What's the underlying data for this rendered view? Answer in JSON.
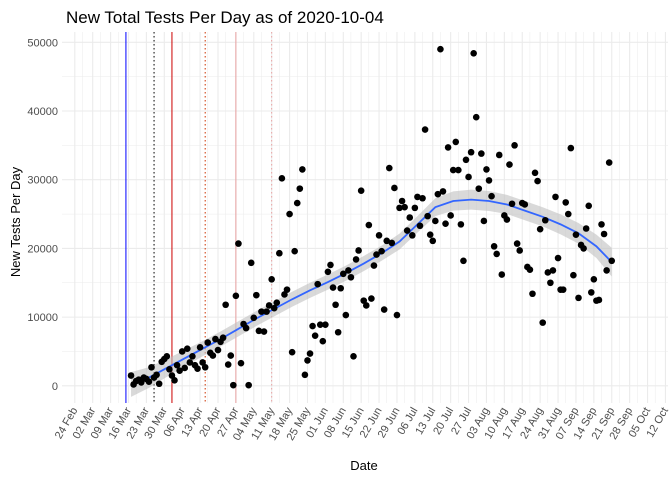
{
  "chart_data": {
    "type": "scatter",
    "title": "New Total Tests Per Day as of 2020-10-04",
    "xlabel": "Date",
    "ylabel": "New Tests Per Day",
    "x_range": [
      "2020-02-19",
      "2020-10-13"
    ],
    "ylim": [
      -2500,
      51500
    ],
    "y_ticks": [
      0,
      10000,
      20000,
      30000,
      40000,
      50000
    ],
    "x_ticks": [
      {
        "date": "2020-02-24",
        "label": "24 Feb"
      },
      {
        "date": "2020-03-02",
        "label": "02 Mar"
      },
      {
        "date": "2020-03-09",
        "label": "09 Mar"
      },
      {
        "date": "2020-03-16",
        "label": "16 Mar"
      },
      {
        "date": "2020-03-23",
        "label": "23 Mar"
      },
      {
        "date": "2020-03-30",
        "label": "30 Mar"
      },
      {
        "date": "2020-04-06",
        "label": "06 Apr"
      },
      {
        "date": "2020-04-13",
        "label": "13 Apr"
      },
      {
        "date": "2020-04-20",
        "label": "20 Apr"
      },
      {
        "date": "2020-04-27",
        "label": "27 Apr"
      },
      {
        "date": "2020-05-04",
        "label": "04 May"
      },
      {
        "date": "2020-05-11",
        "label": "11 May"
      },
      {
        "date": "2020-05-18",
        "label": "18 May"
      },
      {
        "date": "2020-05-25",
        "label": "25 May"
      },
      {
        "date": "2020-06-01",
        "label": "01 Jun"
      },
      {
        "date": "2020-06-08",
        "label": "08 Jun"
      },
      {
        "date": "2020-06-15",
        "label": "15 Jun"
      },
      {
        "date": "2020-06-22",
        "label": "22 Jun"
      },
      {
        "date": "2020-06-29",
        "label": "29 Jun"
      },
      {
        "date": "2020-07-06",
        "label": "06 Jul"
      },
      {
        "date": "2020-07-13",
        "label": "13 Jul"
      },
      {
        "date": "2020-07-20",
        "label": "20 Jul"
      },
      {
        "date": "2020-07-27",
        "label": "27 Jul"
      },
      {
        "date": "2020-08-03",
        "label": "03 Aug"
      },
      {
        "date": "2020-08-10",
        "label": "10 Aug"
      },
      {
        "date": "2020-08-17",
        "label": "17 Aug"
      },
      {
        "date": "2020-08-24",
        "label": "24 Aug"
      },
      {
        "date": "2020-08-31",
        "label": "31 Aug"
      },
      {
        "date": "2020-09-07",
        "label": "07 Sep"
      },
      {
        "date": "2020-09-14",
        "label": "14 Sep"
      },
      {
        "date": "2020-09-21",
        "label": "21 Sep"
      },
      {
        "date": "2020-09-28",
        "label": "28 Sep"
      },
      {
        "date": "2020-10-05",
        "label": "05 Oct"
      },
      {
        "date": "2020-10-12",
        "label": "12 Oct"
      }
    ],
    "grid": true,
    "legend": "none",
    "colors": {
      "points": "#000000",
      "smooth_line": "#3366ff",
      "ribbon": "#bfbfbf",
      "gridline": "#ebebeb"
    },
    "vlines": [
      {
        "date": "2020-03-15",
        "color": "#0000ff",
        "style": "solid"
      },
      {
        "date": "2020-03-26",
        "color": "#000000",
        "style": "dotted"
      },
      {
        "date": "2020-04-02",
        "color": "#cc0000",
        "style": "solid"
      },
      {
        "date": "2020-04-15",
        "color": "#cc3300",
        "style": "dotted"
      },
      {
        "date": "2020-04-27",
        "color": "#e8a0a0",
        "style": "solid"
      },
      {
        "date": "2020-05-11",
        "color": "#e8a0a0",
        "style": "dotted"
      }
    ],
    "series": [
      {
        "style": "points",
        "points": [
          [
            "2020-03-17",
            1500
          ],
          [
            "2020-03-18",
            200
          ],
          [
            "2020-03-19",
            700
          ],
          [
            "2020-03-20",
            900
          ],
          [
            "2020-03-21",
            500
          ],
          [
            "2020-03-22",
            1200
          ],
          [
            "2020-03-23",
            1000
          ],
          [
            "2020-03-24",
            600
          ],
          [
            "2020-03-25",
            2700
          ],
          [
            "2020-03-26",
            1200
          ],
          [
            "2020-03-27",
            1600
          ],
          [
            "2020-03-28",
            300
          ],
          [
            "2020-03-29",
            3500
          ],
          [
            "2020-03-30",
            3900
          ],
          [
            "2020-03-31",
            4300
          ],
          [
            "2020-04-01",
            2400
          ],
          [
            "2020-04-02",
            1500
          ],
          [
            "2020-04-03",
            800
          ],
          [
            "2020-04-04",
            3000
          ],
          [
            "2020-04-05",
            2200
          ],
          [
            "2020-04-06",
            5000
          ],
          [
            "2020-04-07",
            2600
          ],
          [
            "2020-04-08",
            5400
          ],
          [
            "2020-04-09",
            3400
          ],
          [
            "2020-04-10",
            4300
          ],
          [
            "2020-04-11",
            3000
          ],
          [
            "2020-04-12",
            2500
          ],
          [
            "2020-04-13",
            5600
          ],
          [
            "2020-04-14",
            3400
          ],
          [
            "2020-04-15",
            2700
          ],
          [
            "2020-04-16",
            6300
          ],
          [
            "2020-04-17",
            4800
          ],
          [
            "2020-04-18",
            4400
          ],
          [
            "2020-04-19",
            6800
          ],
          [
            "2020-04-20",
            5200
          ],
          [
            "2020-04-21",
            6400
          ],
          [
            "2020-04-22",
            7000
          ],
          [
            "2020-04-23",
            11800
          ],
          [
            "2020-04-24",
            3100
          ],
          [
            "2020-04-25",
            4400
          ],
          [
            "2020-04-26",
            100
          ],
          [
            "2020-04-27",
            13100
          ],
          [
            "2020-04-28",
            20700
          ],
          [
            "2020-04-29",
            3300
          ],
          [
            "2020-04-30",
            9000
          ],
          [
            "2020-05-01",
            8400
          ],
          [
            "2020-05-02",
            100
          ],
          [
            "2020-05-03",
            17900
          ],
          [
            "2020-05-04",
            9900
          ],
          [
            "2020-05-05",
            13200
          ],
          [
            "2020-05-06",
            8000
          ],
          [
            "2020-05-07",
            10800
          ],
          [
            "2020-05-08",
            7900
          ],
          [
            "2020-05-09",
            10800
          ],
          [
            "2020-05-10",
            11700
          ],
          [
            "2020-05-11",
            15500
          ],
          [
            "2020-05-12",
            11300
          ],
          [
            "2020-05-13",
            12100
          ],
          [
            "2020-05-14",
            19300
          ],
          [
            "2020-05-15",
            30200
          ],
          [
            "2020-05-16",
            13300
          ],
          [
            "2020-05-17",
            14000
          ],
          [
            "2020-05-18",
            25000
          ],
          [
            "2020-05-19",
            4900
          ],
          [
            "2020-05-20",
            19600
          ],
          [
            "2020-05-21",
            26600
          ],
          [
            "2020-05-22",
            28700
          ],
          [
            "2020-05-23",
            31500
          ],
          [
            "2020-05-24",
            1600
          ],
          [
            "2020-05-25",
            3700
          ],
          [
            "2020-05-26",
            4700
          ],
          [
            "2020-05-27",
            8700
          ],
          [
            "2020-05-28",
            7300
          ],
          [
            "2020-05-29",
            14800
          ],
          [
            "2020-05-30",
            8900
          ],
          [
            "2020-05-31",
            6500
          ],
          [
            "2020-06-01",
            8900
          ],
          [
            "2020-06-02",
            16600
          ],
          [
            "2020-06-03",
            17600
          ],
          [
            "2020-06-04",
            14300
          ],
          [
            "2020-06-05",
            11800
          ],
          [
            "2020-06-06",
            7800
          ],
          [
            "2020-06-07",
            14200
          ],
          [
            "2020-06-08",
            16300
          ],
          [
            "2020-06-09",
            10300
          ],
          [
            "2020-06-10",
            16800
          ],
          [
            "2020-06-11",
            15800
          ],
          [
            "2020-06-12",
            4300
          ],
          [
            "2020-06-13",
            18400
          ],
          [
            "2020-06-14",
            19700
          ],
          [
            "2020-06-15",
            28400
          ],
          [
            "2020-06-16",
            12400
          ],
          [
            "2020-06-17",
            11700
          ],
          [
            "2020-06-18",
            23400
          ],
          [
            "2020-06-19",
            12700
          ],
          [
            "2020-06-20",
            17500
          ],
          [
            "2020-06-21",
            19100
          ],
          [
            "2020-06-22",
            21900
          ],
          [
            "2020-06-23",
            19600
          ],
          [
            "2020-06-24",
            11100
          ],
          [
            "2020-06-25",
            21100
          ],
          [
            "2020-06-26",
            31700
          ],
          [
            "2020-06-27",
            20800
          ],
          [
            "2020-06-28",
            28800
          ],
          [
            "2020-06-29",
            10300
          ],
          [
            "2020-06-30",
            25900
          ],
          [
            "2020-07-01",
            26900
          ],
          [
            "2020-07-02",
            26000
          ],
          [
            "2020-07-03",
            22600
          ],
          [
            "2020-07-04",
            24500
          ],
          [
            "2020-07-05",
            21900
          ],
          [
            "2020-07-06",
            25900
          ],
          [
            "2020-07-07",
            27500
          ],
          [
            "2020-07-08",
            23300
          ],
          [
            "2020-07-09",
            27300
          ],
          [
            "2020-07-10",
            37300
          ],
          [
            "2020-07-11",
            24700
          ],
          [
            "2020-07-12",
            22000
          ],
          [
            "2020-07-13",
            21100
          ],
          [
            "2020-07-14",
            24000
          ],
          [
            "2020-07-15",
            27900
          ],
          [
            "2020-07-16",
            49000
          ],
          [
            "2020-07-17",
            28300
          ],
          [
            "2020-07-18",
            23600
          ],
          [
            "2020-07-19",
            34700
          ],
          [
            "2020-07-20",
            24800
          ],
          [
            "2020-07-21",
            31400
          ],
          [
            "2020-07-22",
            35500
          ],
          [
            "2020-07-23",
            31400
          ],
          [
            "2020-07-24",
            23500
          ],
          [
            "2020-07-25",
            18200
          ],
          [
            "2020-07-26",
            32900
          ],
          [
            "2020-07-27",
            30400
          ],
          [
            "2020-07-28",
            34000
          ],
          [
            "2020-07-29",
            48400
          ],
          [
            "2020-07-30",
            39100
          ],
          [
            "2020-07-31",
            28700
          ],
          [
            "2020-08-01",
            33800
          ],
          [
            "2020-08-02",
            24000
          ],
          [
            "2020-08-03",
            31500
          ],
          [
            "2020-08-04",
            29900
          ],
          [
            "2020-08-05",
            27600
          ],
          [
            "2020-08-06",
            20300
          ],
          [
            "2020-08-07",
            19200
          ],
          [
            "2020-08-08",
            33600
          ],
          [
            "2020-08-09",
            16200
          ],
          [
            "2020-08-10",
            24800
          ],
          [
            "2020-08-11",
            24200
          ],
          [
            "2020-08-12",
            32200
          ],
          [
            "2020-08-13",
            26500
          ],
          [
            "2020-08-14",
            35000
          ],
          [
            "2020-08-15",
            20700
          ],
          [
            "2020-08-16",
            19700
          ],
          [
            "2020-08-17",
            26600
          ],
          [
            "2020-08-18",
            26400
          ],
          [
            "2020-08-19",
            17300
          ],
          [
            "2020-08-20",
            16900
          ],
          [
            "2020-08-21",
            13400
          ],
          [
            "2020-08-22",
            31000
          ],
          [
            "2020-08-23",
            29800
          ],
          [
            "2020-08-24",
            22800
          ],
          [
            "2020-08-25",
            9200
          ],
          [
            "2020-08-26",
            24100
          ],
          [
            "2020-08-27",
            16500
          ],
          [
            "2020-08-28",
            15000
          ],
          [
            "2020-08-29",
            16800
          ],
          [
            "2020-08-30",
            27500
          ],
          [
            "2020-08-31",
            18600
          ],
          [
            "2020-09-01",
            14000
          ],
          [
            "2020-09-02",
            14000
          ],
          [
            "2020-09-03",
            26700
          ],
          [
            "2020-09-04",
            25000
          ],
          [
            "2020-09-05",
            34600
          ],
          [
            "2020-09-06",
            16100
          ],
          [
            "2020-09-07",
            22000
          ],
          [
            "2020-09-08",
            12800
          ],
          [
            "2020-09-09",
            20500
          ],
          [
            "2020-09-10",
            20000
          ],
          [
            "2020-09-11",
            22900
          ],
          [
            "2020-09-12",
            26200
          ],
          [
            "2020-09-13",
            13600
          ],
          [
            "2020-09-14",
            15500
          ],
          [
            "2020-09-15",
            12400
          ],
          [
            "2020-09-16",
            12500
          ],
          [
            "2020-09-17",
            23500
          ],
          [
            "2020-09-18",
            22100
          ],
          [
            "2020-09-19",
            16800
          ],
          [
            "2020-09-20",
            32500
          ],
          [
            "2020-09-21",
            18200
          ]
        ]
      },
      {
        "style": "smooth",
        "points": [
          [
            "2020-03-17",
            200
          ],
          [
            "2020-03-24",
            1200
          ],
          [
            "2020-03-31",
            2600
          ],
          [
            "2020-04-07",
            4000
          ],
          [
            "2020-04-14",
            5400
          ],
          [
            "2020-04-21",
            6800
          ],
          [
            "2020-04-28",
            8300
          ],
          [
            "2020-05-05",
            9800
          ],
          [
            "2020-05-12",
            11200
          ],
          [
            "2020-05-19",
            12600
          ],
          [
            "2020-05-26",
            13900
          ],
          [
            "2020-06-02",
            15100
          ],
          [
            "2020-06-09",
            16400
          ],
          [
            "2020-06-16",
            17800
          ],
          [
            "2020-06-23",
            19300
          ],
          [
            "2020-06-30",
            21000
          ],
          [
            "2020-07-07",
            23500
          ],
          [
            "2020-07-14",
            26000
          ],
          [
            "2020-07-21",
            26900
          ],
          [
            "2020-07-28",
            27100
          ],
          [
            "2020-08-04",
            26900
          ],
          [
            "2020-08-11",
            26400
          ],
          [
            "2020-08-18",
            25500
          ],
          [
            "2020-08-25",
            24600
          ],
          [
            "2020-09-01",
            23500
          ],
          [
            "2020-09-08",
            22200
          ],
          [
            "2020-09-15",
            20300
          ],
          [
            "2020-09-21",
            18000
          ]
        ],
        "ribbon_halfwidth": [
          1800,
          1500,
          1300,
          1200,
          1100,
          1100,
          1100,
          1100,
          1100,
          1100,
          1100,
          1100,
          1100,
          1100,
          1100,
          1150,
          1200,
          1300,
          1400,
          1450,
          1450,
          1400,
          1400,
          1400,
          1450,
          1500,
          1700,
          2100
        ]
      }
    ]
  }
}
